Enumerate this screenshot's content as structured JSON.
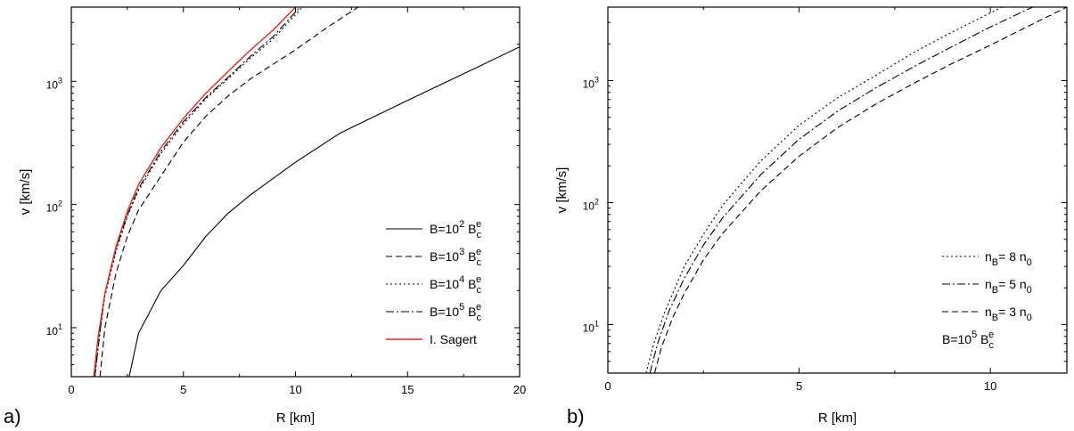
{
  "chart_data": [
    {
      "type": "line",
      "panel_label": "a)",
      "xlabel": "R [km]",
      "ylabel": "v [km/s]",
      "x_scale": "linear",
      "y_scale": "log",
      "xlim": [
        0,
        20
      ],
      "ylim": [
        4,
        4000
      ],
      "xticks": [
        0,
        5,
        10,
        15,
        20
      ],
      "yticks": [
        {
          "value": 10,
          "base": "10",
          "exp": "1"
        },
        {
          "value": 100,
          "base": "10",
          "exp": "2"
        },
        {
          "value": 1000,
          "base": "10",
          "exp": "3"
        }
      ],
      "grid": false,
      "legend_position": "bottom-right",
      "series": [
        {
          "name": "B=10^2 B_c^e",
          "legend": {
            "prefix": "B=10",
            "exp": "2",
            "mid": " B",
            "sub": "c",
            "sup": "e",
            "tail": ""
          },
          "style": "solid",
          "color": "#000000",
          "x": [
            2.58,
            3,
            4,
            5,
            6,
            7,
            8,
            10,
            12,
            15,
            17.5,
            20
          ],
          "y": [
            4,
            9,
            20,
            32,
            55,
            85,
            120,
            220,
            380,
            700,
            1150,
            1900
          ]
        },
        {
          "name": "B=10^3 B_c^e",
          "legend": {
            "prefix": "B=10",
            "exp": "3",
            "mid": " B",
            "sub": "c",
            "sup": "e",
            "tail": ""
          },
          "style": "dashed",
          "color": "#000000",
          "x": [
            1.28,
            1.5,
            2,
            2.5,
            3,
            4,
            5,
            6,
            7,
            8,
            10,
            11.5,
            12.8
          ],
          "y": [
            4,
            10,
            28,
            55,
            90,
            170,
            320,
            520,
            760,
            1050,
            1800,
            2800,
            4000
          ]
        },
        {
          "name": "B=10^4 B_c^e",
          "legend": {
            "prefix": "B=10",
            "exp": "4",
            "mid": " B",
            "sub": "c",
            "sup": "e",
            "tail": ""
          },
          "style": "dotted",
          "color": "#000000",
          "x": [
            1.05,
            1.3,
            1.5,
            2,
            2.5,
            3,
            4,
            5,
            6,
            7,
            8,
            9,
            10.3
          ],
          "y": [
            4,
            10,
            18,
            42,
            80,
            130,
            260,
            450,
            720,
            1050,
            1550,
            2200,
            4000
          ]
        },
        {
          "name": "B=10^5 B_c^e",
          "legend": {
            "prefix": "B=10",
            "exp": "5",
            "mid": " B",
            "sub": "c",
            "sup": "e",
            "tail": ""
          },
          "style": "dashdot",
          "color": "#000000",
          "x": [
            1.05,
            1.3,
            1.5,
            2,
            2.5,
            3,
            4,
            5,
            6,
            7,
            8,
            9,
            10.2
          ],
          "y": [
            4,
            10,
            19,
            44,
            82,
            135,
            270,
            470,
            740,
            1080,
            1600,
            2300,
            4000
          ]
        },
        {
          "name": "I. Sagert",
          "legend": {
            "prefix": "I. Sagert",
            "exp": "",
            "mid": "",
            "sub": "",
            "sup": "",
            "tail": ""
          },
          "style": "solid",
          "color": "#e8231c",
          "x": [
            1.0,
            1.2,
            1.5,
            2,
            2.5,
            3,
            4,
            5,
            6,
            7,
            8,
            9,
            10
          ],
          "y": [
            4,
            8.5,
            19,
            46,
            88,
            145,
            290,
            500,
            800,
            1200,
            1800,
            2600,
            4000
          ]
        }
      ]
    },
    {
      "type": "line",
      "panel_label": "b)",
      "xlabel": "R [km]",
      "ylabel": "v [km/s]",
      "x_scale": "linear",
      "y_scale": "log",
      "xlim": [
        0,
        12
      ],
      "ylim": [
        4,
        4000
      ],
      "xticks": [
        0,
        5,
        10
      ],
      "yticks": [
        {
          "value": 10,
          "base": "10",
          "exp": "1"
        },
        {
          "value": 100,
          "base": "10",
          "exp": "2"
        },
        {
          "value": 1000,
          "base": "10",
          "exp": "3"
        }
      ],
      "grid": false,
      "legend_position": "bottom-right",
      "annotation": {
        "prefix": "B=10",
        "exp": "5",
        "mid": " B",
        "sub": "c",
        "sup": "e"
      },
      "series": [
        {
          "name": "n_B= 8 n_0",
          "legend": {
            "prefix": "n",
            "exp": "",
            "mid": "",
            "sub": "B",
            "sup": "",
            "tail": "= 8 n",
            "tail_sub": "0"
          },
          "style": "dotted",
          "color": "#000000",
          "x": [
            1.0,
            1.2,
            1.5,
            2,
            2.5,
            3,
            4,
            5,
            6,
            7,
            8,
            9,
            10.3
          ],
          "y": [
            4,
            7,
            13,
            30,
            55,
            95,
            220,
            430,
            720,
            1100,
            1700,
            2500,
            4000
          ]
        },
        {
          "name": "n_B= 5 n_0",
          "legend": {
            "prefix": "n",
            "exp": "",
            "mid": "",
            "sub": "B",
            "sup": "",
            "tail": "= 5 n",
            "tail_sub": "0"
          },
          "style": "dashdot",
          "color": "#000000",
          "x": [
            1.1,
            1.3,
            1.6,
            2,
            2.5,
            3,
            4,
            5,
            6,
            7,
            8,
            9,
            10,
            11.1
          ],
          "y": [
            4,
            7,
            13,
            24,
            45,
            75,
            170,
            330,
            560,
            870,
            1300,
            1900,
            2750,
            4000
          ]
        },
        {
          "name": "n_B= 3 n_0",
          "legend": {
            "prefix": "n",
            "exp": "",
            "mid": "",
            "sub": "B",
            "sup": "",
            "tail": "= 3 n",
            "tail_sub": "0"
          },
          "style": "dashed",
          "color": "#000000",
          "x": [
            1.22,
            1.4,
            1.7,
            2,
            2.5,
            3,
            4,
            5,
            6,
            7,
            8,
            9,
            10,
            11,
            12
          ],
          "y": [
            4,
            6.5,
            11.5,
            18,
            34,
            56,
            125,
            240,
            410,
            640,
            950,
            1380,
            1950,
            2800,
            4000
          ]
        }
      ]
    }
  ]
}
